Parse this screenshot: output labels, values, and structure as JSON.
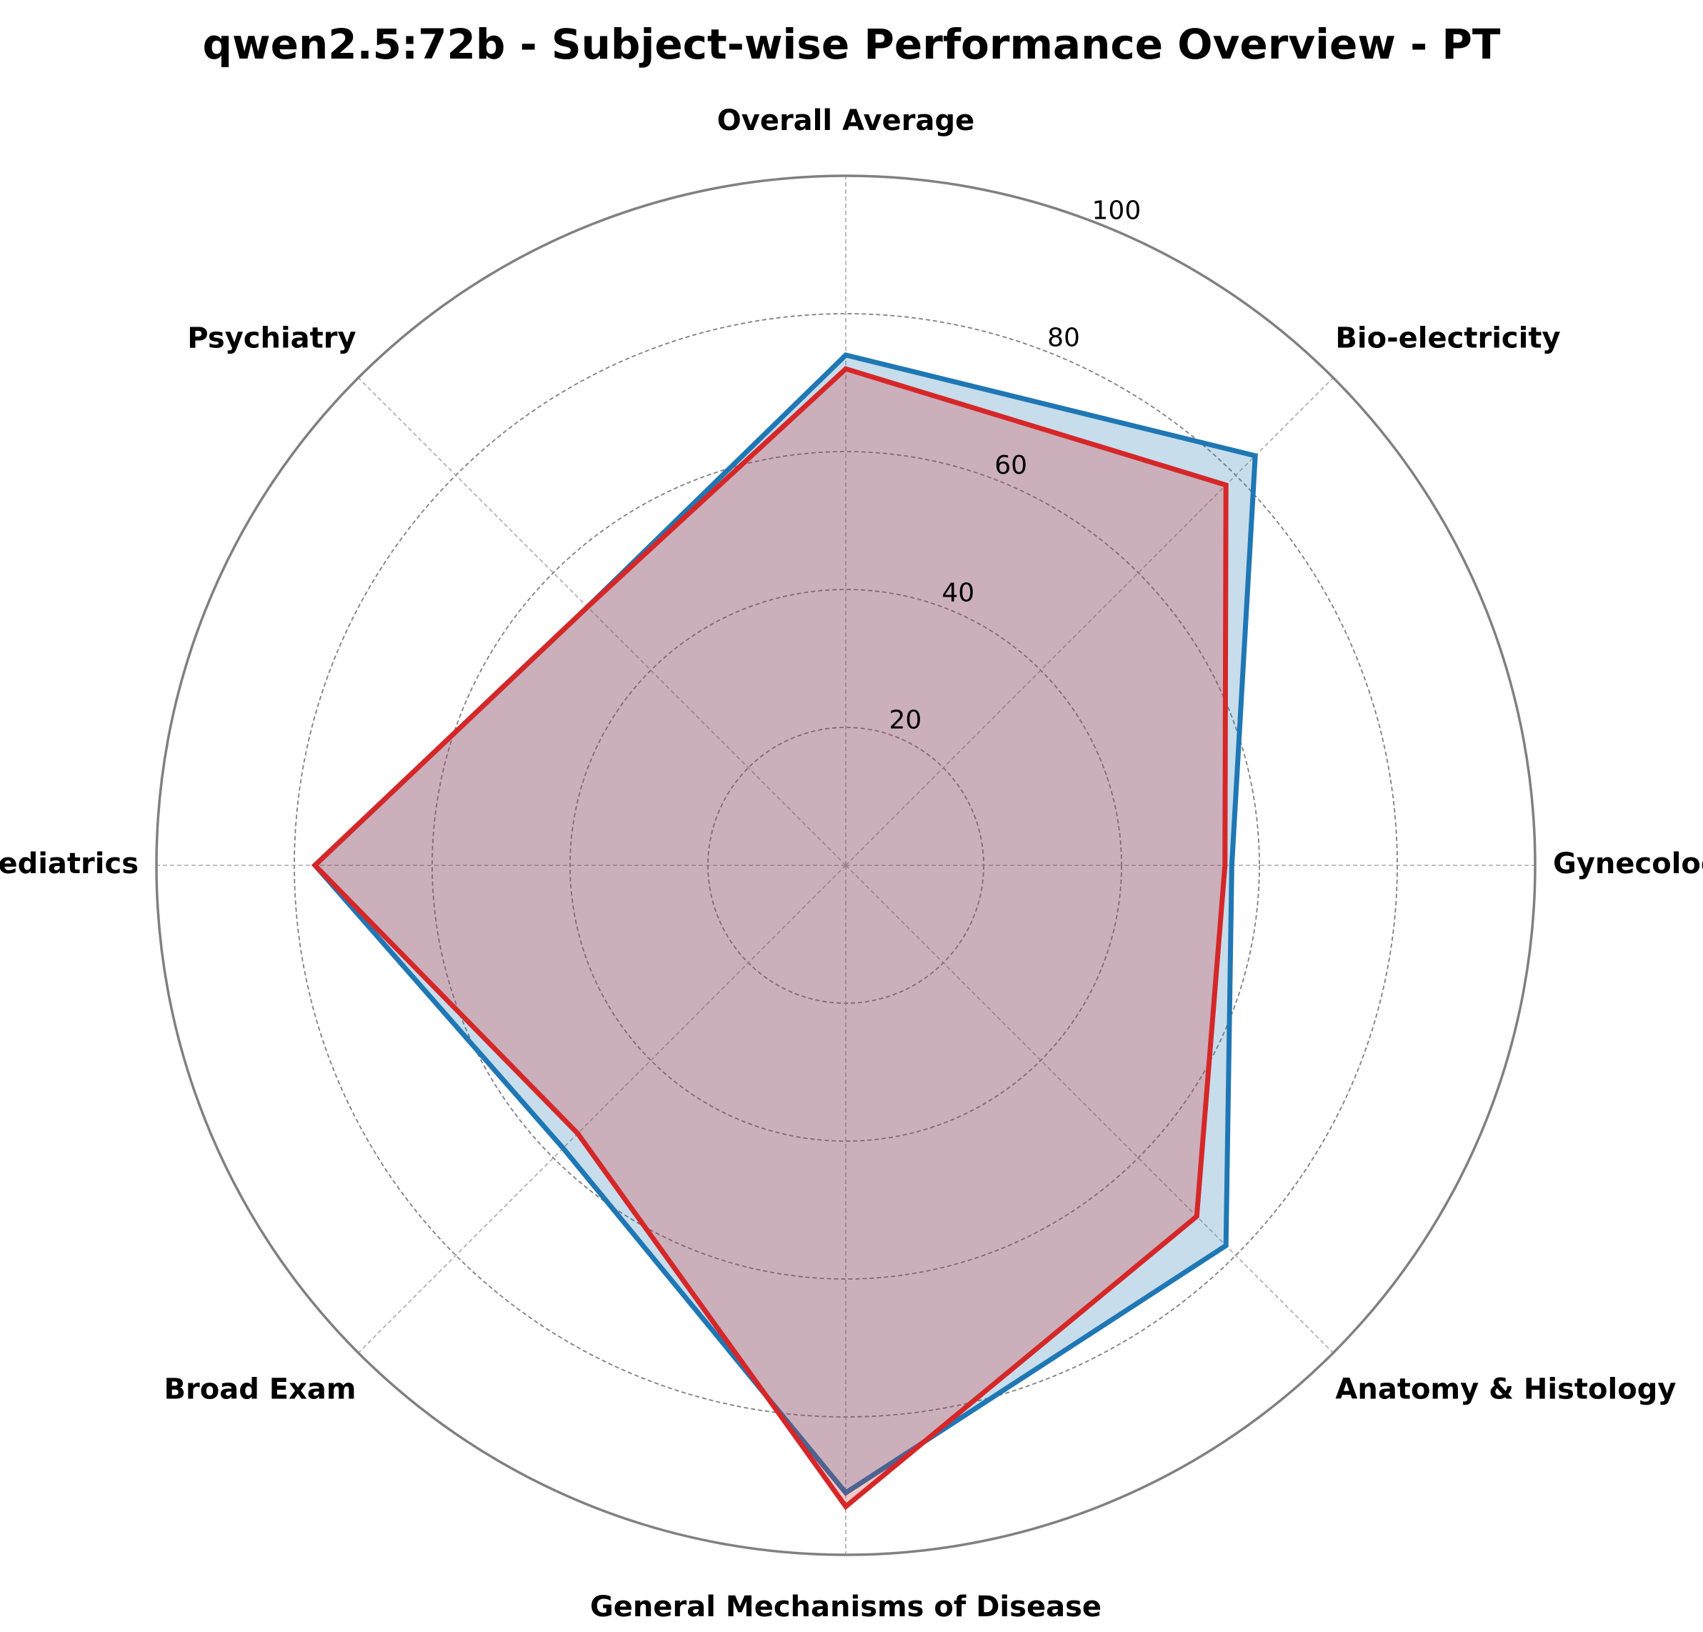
{
  "chart_data": {
    "type": "radar",
    "title": "qwen2.5:72b - Subject-wise Performance Overview - PT",
    "categories": [
      "Overall Average",
      "Bio-electricity",
      "Gynecology",
      "Anatomy & Histology",
      "General Mechanisms of Disease",
      "Broad Exam",
      "Pediatrics",
      "Psychiatry"
    ],
    "rlim": [
      0,
      100
    ],
    "rticks": [
      20,
      40,
      60,
      80,
      100
    ],
    "rtick_labels": [
      "20",
      "40",
      "60",
      "80",
      "100"
    ],
    "grid": true,
    "legend": "none",
    "series": [
      {
        "color": "#1f77b4",
        "fill_alpha": 0.25,
        "values": [
          74,
          84,
          56,
          78,
          91,
          58,
          77,
          53
        ]
      },
      {
        "color": "#d62728",
        "fill_alpha": 0.25,
        "values": [
          72,
          78,
          55,
          72,
          93,
          55,
          77,
          53
        ]
      }
    ]
  }
}
